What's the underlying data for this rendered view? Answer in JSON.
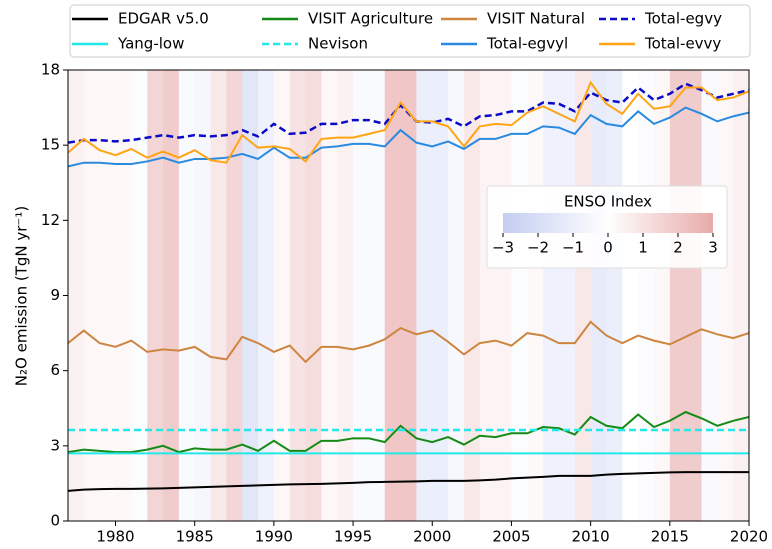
{
  "chart_data": {
    "type": "line",
    "ylabel": "N₂O emission (TgN yr⁻¹)",
    "x": [
      1977,
      1978,
      1979,
      1980,
      1981,
      1982,
      1983,
      1984,
      1985,
      1986,
      1987,
      1988,
      1989,
      1990,
      1991,
      1992,
      1993,
      1994,
      1995,
      1996,
      1997,
      1998,
      1999,
      2000,
      2001,
      2002,
      2003,
      2004,
      2005,
      2006,
      2007,
      2008,
      2009,
      2010,
      2011,
      2012,
      2013,
      2014,
      2015,
      2016,
      2017,
      2018,
      2019,
      2020
    ],
    "xlim": [
      1977,
      2020
    ],
    "xticks": [
      1980,
      1985,
      1990,
      1995,
      2000,
      2005,
      2010,
      2015,
      2020
    ],
    "ylim": [
      0,
      18
    ],
    "yticks": [
      0,
      3,
      6,
      9,
      12,
      15,
      18
    ],
    "series": [
      {
        "name": "EDGAR v5.0",
        "color": "#000000",
        "dashed": false,
        "values": [
          1.2,
          1.25,
          1.27,
          1.28,
          1.28,
          1.29,
          1.3,
          1.32,
          1.34,
          1.36,
          1.38,
          1.4,
          1.42,
          1.44,
          1.46,
          1.47,
          1.48,
          1.5,
          1.52,
          1.55,
          1.56,
          1.57,
          1.58,
          1.6,
          1.6,
          1.6,
          1.62,
          1.65,
          1.7,
          1.73,
          1.76,
          1.8,
          1.8,
          1.8,
          1.85,
          1.88,
          1.9,
          1.92,
          1.94,
          1.95,
          1.95,
          1.95,
          1.95,
          1.95
        ]
      },
      {
        "name": "VISIT Agriculture",
        "color": "#158a15",
        "dashed": false,
        "values": [
          2.75,
          2.85,
          2.8,
          2.75,
          2.75,
          2.85,
          3.0,
          2.75,
          2.9,
          2.85,
          2.85,
          3.05,
          2.8,
          3.2,
          2.8,
          2.8,
          3.2,
          3.2,
          3.3,
          3.3,
          3.15,
          3.8,
          3.3,
          3.15,
          3.35,
          3.05,
          3.4,
          3.35,
          3.5,
          3.5,
          3.75,
          3.7,
          3.45,
          4.15,
          3.8,
          3.7,
          4.25,
          3.75,
          4.0,
          4.35,
          4.1,
          3.8,
          4.0,
          4.15
        ]
      },
      {
        "name": "VISIT Natural",
        "color": "#cd853f",
        "dashed": false,
        "values": [
          7.1,
          7.6,
          7.1,
          6.95,
          7.2,
          6.75,
          6.85,
          6.8,
          6.95,
          6.55,
          6.45,
          7.35,
          7.1,
          6.75,
          7.0,
          6.35,
          6.95,
          6.95,
          6.85,
          7.0,
          7.25,
          7.7,
          7.45,
          7.6,
          7.15,
          6.65,
          7.1,
          7.2,
          7.0,
          7.5,
          7.4,
          7.1,
          7.1,
          7.95,
          7.4,
          7.1,
          7.4,
          7.2,
          7.05,
          7.35,
          7.65,
          7.45,
          7.3,
          7.5
        ]
      },
      {
        "name": "Total-egvy",
        "color": "#0a0ac8",
        "dashed": true,
        "values": [
          15.1,
          15.2,
          15.2,
          15.15,
          15.2,
          15.3,
          15.4,
          15.3,
          15.4,
          15.35,
          15.4,
          15.6,
          15.35,
          15.85,
          15.45,
          15.5,
          15.85,
          15.85,
          16.0,
          16.0,
          15.85,
          16.6,
          15.95,
          15.9,
          16.05,
          15.75,
          16.15,
          16.2,
          16.35,
          16.35,
          16.7,
          16.65,
          16.35,
          17.1,
          16.8,
          16.7,
          17.3,
          16.8,
          17.05,
          17.45,
          17.2,
          16.9,
          17.05,
          17.2
        ]
      },
      {
        "name": "Yang-low",
        "color": "#22e8e8",
        "dashed": false,
        "values": [
          2.7,
          2.7,
          2.7,
          2.7,
          2.7,
          2.7,
          2.7,
          2.7,
          2.7,
          2.7,
          2.7,
          2.7,
          2.7,
          2.7,
          2.7,
          2.7,
          2.7,
          2.7,
          2.7,
          2.7,
          2.7,
          2.7,
          2.7,
          2.7,
          2.7,
          2.7,
          2.7,
          2.7,
          2.7,
          2.7,
          2.7,
          2.7,
          2.7,
          2.7,
          2.7,
          2.7,
          2.7,
          2.7,
          2.7,
          2.7,
          2.7,
          2.7,
          2.7,
          2.7
        ]
      },
      {
        "name": "Nevison",
        "color": "#22e8e8",
        "dashed": true,
        "values": [
          3.63,
          3.63,
          3.63,
          3.63,
          3.63,
          3.63,
          3.63,
          3.63,
          3.63,
          3.63,
          3.63,
          3.63,
          3.63,
          3.63,
          3.63,
          3.63,
          3.63,
          3.63,
          3.63,
          3.63,
          3.63,
          3.63,
          3.63,
          3.63,
          3.63,
          3.63,
          3.63,
          3.63,
          3.63,
          3.63,
          3.63,
          3.63,
          3.63,
          3.63,
          3.63,
          3.63,
          3.63,
          3.63,
          3.63,
          3.63,
          3.63,
          3.63,
          3.63,
          3.63
        ]
      },
      {
        "name": "Total-egvyl",
        "color": "#2a8ae0",
        "dashed": false,
        "values": [
          14.15,
          14.3,
          14.3,
          14.25,
          14.25,
          14.35,
          14.5,
          14.3,
          14.45,
          14.45,
          14.5,
          14.65,
          14.45,
          14.9,
          14.5,
          14.5,
          14.9,
          14.95,
          15.05,
          15.05,
          14.95,
          15.6,
          15.1,
          14.95,
          15.15,
          14.85,
          15.25,
          15.25,
          15.45,
          15.45,
          15.75,
          15.7,
          15.45,
          16.2,
          15.85,
          15.75,
          16.35,
          15.85,
          16.1,
          16.5,
          16.25,
          15.95,
          16.15,
          16.3
        ]
      },
      {
        "name": "Total-evvy",
        "color": "#ffa514",
        "dashed": false,
        "values": [
          14.7,
          15.25,
          14.8,
          14.6,
          14.85,
          14.5,
          14.75,
          14.5,
          14.8,
          14.4,
          14.3,
          15.4,
          14.9,
          14.95,
          14.85,
          14.35,
          15.25,
          15.3,
          15.3,
          15.45,
          15.6,
          16.7,
          15.95,
          15.95,
          15.75,
          14.95,
          15.75,
          15.85,
          15.8,
          16.3,
          16.55,
          16.25,
          15.95,
          17.5,
          16.65,
          16.25,
          17.05,
          16.45,
          16.55,
          17.3,
          17.3,
          16.8,
          16.9,
          17.15
        ]
      }
    ],
    "enso": {
      "title": "ENSO Index",
      "x": [
        1977,
        1978,
        1979,
        1980,
        1981,
        1982,
        1983,
        1984,
        1985,
        1986,
        1987,
        1988,
        1989,
        1990,
        1991,
        1992,
        1993,
        1994,
        1995,
        1996,
        1997,
        1998,
        1999,
        2000,
        2001,
        2002,
        2003,
        2004,
        2005,
        2006,
        2007,
        2008,
        2009,
        2010,
        2011,
        2012,
        2013,
        2014,
        2015,
        2016,
        2017,
        2018,
        2019
      ],
      "values": [
        0.5,
        0.3,
        0.2,
        0.3,
        -0.2,
        1.5,
        1.8,
        -0.3,
        -0.5,
        0.8,
        1.5,
        -1.5,
        -0.8,
        0.3,
        1.0,
        1.2,
        0.3,
        0.5,
        -0.3,
        -0.3,
        2.0,
        2.0,
        -1.0,
        -1.0,
        -0.4,
        0.8,
        0.4,
        0.4,
        -0.2,
        0.2,
        -0.8,
        -0.8,
        0.8,
        -1.2,
        -1.0,
        0.0,
        -0.2,
        0.3,
        1.8,
        1.8,
        -0.3,
        0.3,
        0.5
      ],
      "lim": [
        -3,
        3
      ],
      "ticks": [
        {
          "value": -3,
          "label": "−3"
        },
        {
          "value": -2,
          "label": "−2"
        },
        {
          "value": -1,
          "label": "−1"
        },
        0,
        1,
        2,
        3
      ],
      "colors": [
        "#c4cdf2",
        "#ffffff",
        "#e8aaaa"
      ]
    }
  }
}
